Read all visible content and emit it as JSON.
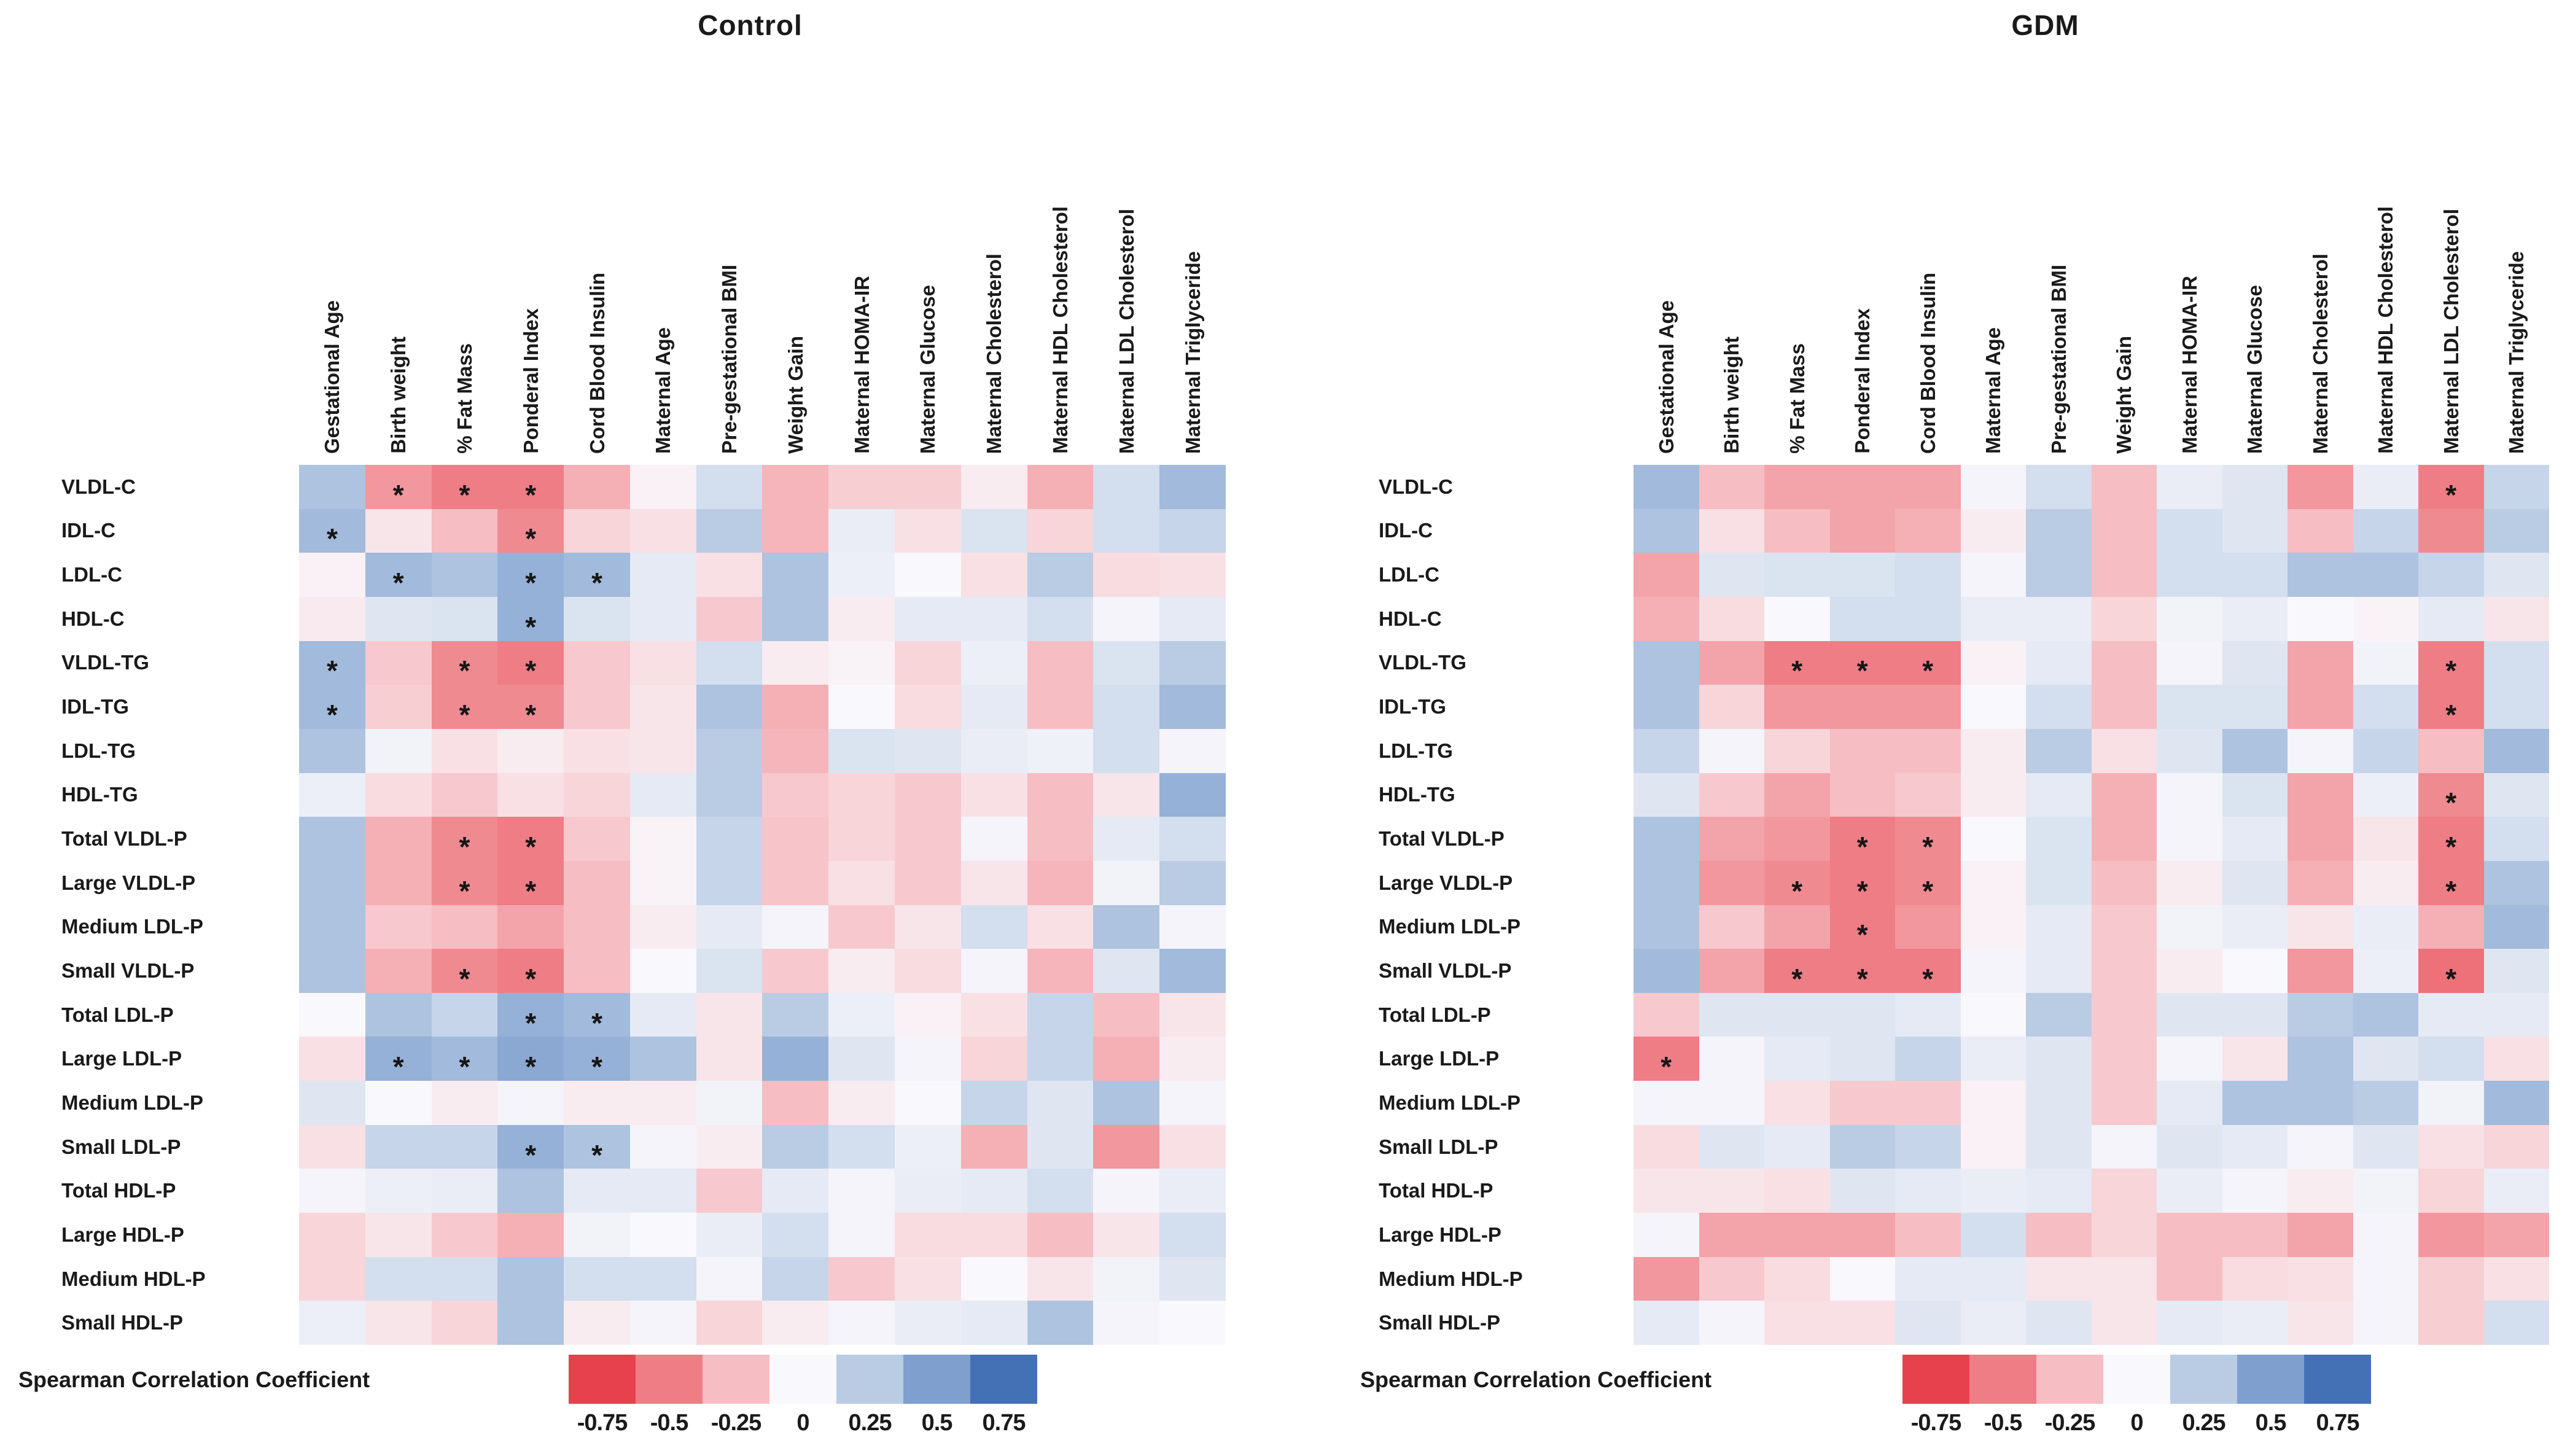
{
  "legend": {
    "caption": "Spearman Correlation Coefficient",
    "ticks": [
      "-0.75",
      "-0.5",
      "-0.25",
      "0",
      "0.25",
      "0.5",
      "0.75"
    ],
    "colors": [
      "#e8414e",
      "#ef7d85",
      "#f6bdc2",
      "#f9f8fc",
      "#b9cce4",
      "#7f9fce",
      "#4471b5"
    ],
    "anchor_values": [
      -0.75,
      -0.5,
      -0.25,
      0,
      0.25,
      0.5,
      0.75
    ]
  },
  "significance_marker": "*",
  "chart_data": [
    {
      "type": "heatmap",
      "title": "Control",
      "legend_position": "bottom",
      "value_range": [
        -1,
        1
      ],
      "columns": [
        "Gestational Age",
        "Birth weight",
        "% Fat Mass",
        "Ponderal Index",
        "Cord Blood Insulin",
        "Maternal Age",
        "Pre-gestational BMI",
        "Weight Gain",
        "Maternal HOMA-IR",
        "Maternal Glucose",
        "Maternal Cholesterol",
        "Maternal HDL Cholesterol",
        "Maternal LDL Cholesterol",
        "Maternal Triglyceride"
      ],
      "rows": [
        "VLDL-C",
        "IDL-C",
        "LDL-C",
        "HDL-C",
        "VLDL-TG",
        "IDL-TG",
        "LDL-TG",
        "HDL-TG",
        "Total VLDL-P",
        "Large VLDL-P",
        "Medium LDL-P",
        "Small VLDL-P",
        "Total LDL-P",
        "Large LDL-P",
        "Medium LDL-P",
        "Small LDL-P",
        "Total HDL-P",
        "Large HDL-P",
        "Medium HDL-P",
        "Small HDL-P"
      ],
      "values": [
        [
          0.3,
          -0.4,
          -0.5,
          -0.5,
          -0.3,
          -0.03,
          0.15,
          -0.28,
          -0.18,
          -0.18,
          -0.05,
          -0.3,
          0.15,
          0.35
        ],
        [
          0.35,
          -0.08,
          -0.25,
          -0.45,
          -0.15,
          -0.1,
          0.25,
          -0.28,
          0.06,
          -0.1,
          0.12,
          -0.15,
          0.15,
          0.2
        ],
        [
          -0.03,
          0.35,
          0.3,
          0.4,
          0.35,
          0.08,
          -0.1,
          0.3,
          0.05,
          0.0,
          -0.1,
          0.25,
          -0.12,
          -0.1
        ],
        [
          -0.06,
          0.1,
          0.12,
          0.4,
          0.12,
          0.08,
          -0.2,
          0.3,
          -0.05,
          0.08,
          0.08,
          0.15,
          0.02,
          0.08
        ],
        [
          0.35,
          -0.2,
          -0.45,
          -0.5,
          -0.2,
          -0.1,
          0.15,
          -0.05,
          -0.02,
          -0.15,
          0.05,
          -0.25,
          0.12,
          0.25
        ],
        [
          0.35,
          -0.18,
          -0.45,
          -0.45,
          -0.2,
          -0.08,
          0.3,
          -0.3,
          0.0,
          -0.12,
          0.08,
          -0.25,
          0.15,
          0.35
        ],
        [
          0.3,
          0.03,
          -0.1,
          -0.05,
          -0.1,
          -0.08,
          0.25,
          -0.28,
          0.12,
          0.1,
          0.06,
          0.04,
          0.15,
          0.02
        ],
        [
          0.05,
          -0.12,
          -0.2,
          -0.1,
          -0.15,
          0.08,
          0.25,
          -0.2,
          -0.15,
          -0.2,
          -0.1,
          -0.25,
          -0.08,
          0.4
        ],
        [
          0.3,
          -0.3,
          -0.45,
          -0.5,
          -0.2,
          -0.02,
          0.2,
          -0.22,
          -0.15,
          -0.2,
          0.02,
          -0.25,
          0.08,
          0.15
        ],
        [
          0.3,
          -0.3,
          -0.45,
          -0.5,
          -0.25,
          -0.02,
          0.2,
          -0.22,
          -0.1,
          -0.2,
          -0.08,
          -0.28,
          0.03,
          0.25
        ],
        [
          0.3,
          -0.2,
          -0.25,
          -0.35,
          -0.25,
          -0.05,
          0.08,
          0.02,
          -0.2,
          -0.08,
          0.15,
          -0.1,
          0.3,
          0.02
        ],
        [
          0.3,
          -0.3,
          -0.45,
          -0.5,
          -0.25,
          0.0,
          0.12,
          -0.2,
          -0.05,
          -0.12,
          0.02,
          -0.28,
          0.1,
          0.35
        ],
        [
          0.0,
          0.3,
          0.2,
          0.4,
          0.35,
          0.08,
          -0.08,
          0.25,
          0.05,
          -0.03,
          -0.1,
          0.2,
          -0.25,
          -0.08
        ],
        [
          -0.1,
          0.4,
          0.35,
          0.45,
          0.4,
          0.3,
          -0.08,
          0.4,
          0.1,
          0.02,
          -0.15,
          0.2,
          -0.3,
          -0.05
        ],
        [
          0.1,
          0.0,
          -0.05,
          0.02,
          -0.05,
          -0.05,
          0.03,
          -0.25,
          -0.05,
          0.0,
          0.2,
          0.1,
          0.3,
          0.02
        ],
        [
          -0.1,
          0.2,
          0.2,
          0.4,
          0.3,
          0.02,
          -0.05,
          0.25,
          0.15,
          0.05,
          -0.3,
          0.1,
          -0.4,
          -0.1
        ],
        [
          0.02,
          0.05,
          0.06,
          0.3,
          0.08,
          0.08,
          -0.2,
          0.08,
          0.02,
          0.06,
          0.08,
          0.15,
          0.02,
          0.06
        ],
        [
          -0.15,
          -0.08,
          -0.2,
          -0.3,
          0.03,
          0.0,
          0.06,
          0.15,
          0.02,
          -0.12,
          -0.12,
          -0.25,
          -0.08,
          0.15
        ],
        [
          -0.15,
          0.15,
          0.15,
          0.3,
          0.15,
          0.15,
          0.02,
          0.2,
          -0.2,
          -0.1,
          0.0,
          -0.08,
          0.03,
          0.1
        ],
        [
          0.05,
          -0.08,
          -0.15,
          0.3,
          -0.05,
          0.02,
          -0.15,
          -0.05,
          0.02,
          0.06,
          0.08,
          0.3,
          0.02,
          0.0
        ]
      ],
      "significant": [
        [
          0,
          1
        ],
        [
          0,
          2
        ],
        [
          0,
          3
        ],
        [
          1,
          0
        ],
        [
          1,
          3
        ],
        [
          2,
          1
        ],
        [
          2,
          3
        ],
        [
          2,
          4
        ],
        [
          3,
          3
        ],
        [
          4,
          0
        ],
        [
          4,
          2
        ],
        [
          4,
          3
        ],
        [
          5,
          0
        ],
        [
          5,
          2
        ],
        [
          5,
          3
        ],
        [
          8,
          2
        ],
        [
          8,
          3
        ],
        [
          9,
          2
        ],
        [
          9,
          3
        ],
        [
          11,
          2
        ],
        [
          11,
          3
        ],
        [
          12,
          3
        ],
        [
          12,
          4
        ],
        [
          13,
          1
        ],
        [
          13,
          2
        ],
        [
          13,
          3
        ],
        [
          13,
          4
        ],
        [
          15,
          3
        ],
        [
          15,
          4
        ]
      ]
    },
    {
      "type": "heatmap",
      "title": "GDM",
      "legend_position": "bottom",
      "value_range": [
        -1,
        1
      ],
      "columns": [
        "Gestational Age",
        "Birth weight",
        "% Fat Mass",
        "Ponderal Index",
        "Cord Blood Insulin",
        "Maternal Age",
        "Pre-gestational BMI",
        "Weight Gain",
        "Maternal HOMA-IR",
        "Maternal Glucose",
        "Maternal Cholesterol",
        "Maternal HDL Cholesterol",
        "Maternal LDL Cholesterol",
        "Maternal Triglyceride"
      ],
      "rows": [
        "VLDL-C",
        "IDL-C",
        "LDL-C",
        "HDL-C",
        "VLDL-TG",
        "IDL-TG",
        "LDL-TG",
        "HDL-TG",
        "Total VLDL-P",
        "Large VLDL-P",
        "Medium LDL-P",
        "Small VLDL-P",
        "Total LDL-P",
        "Large LDL-P",
        "Medium LDL-P",
        "Small LDL-P",
        "Total HDL-P",
        "Large HDL-P",
        "Medium HDL-P",
        "Small HDL-P"
      ],
      "values": [
        [
          0.35,
          -0.25,
          -0.35,
          -0.35,
          -0.35,
          0.02,
          0.15,
          -0.25,
          0.06,
          0.1,
          -0.4,
          0.06,
          -0.5,
          0.2
        ],
        [
          0.3,
          -0.1,
          -0.25,
          -0.35,
          -0.3,
          -0.05,
          0.25,
          -0.25,
          0.15,
          0.1,
          -0.25,
          0.2,
          -0.45,
          0.25
        ],
        [
          -0.35,
          0.1,
          0.12,
          0.12,
          0.15,
          0.02,
          0.25,
          -0.25,
          0.15,
          0.15,
          0.3,
          0.3,
          0.2,
          0.1
        ],
        [
          -0.3,
          -0.12,
          0.0,
          0.15,
          0.15,
          0.06,
          0.06,
          -0.15,
          0.03,
          0.06,
          0.0,
          -0.02,
          0.08,
          -0.08
        ],
        [
          0.3,
          -0.35,
          -0.5,
          -0.5,
          -0.5,
          -0.03,
          0.08,
          -0.25,
          0.02,
          0.1,
          -0.35,
          0.03,
          -0.5,
          0.15
        ],
        [
          0.3,
          -0.15,
          -0.4,
          -0.4,
          -0.4,
          0.0,
          0.15,
          -0.25,
          0.12,
          0.12,
          -0.35,
          0.15,
          -0.5,
          0.15
        ],
        [
          0.2,
          0.02,
          -0.15,
          -0.25,
          -0.25,
          -0.05,
          0.25,
          -0.1,
          0.1,
          0.3,
          0.02,
          0.2,
          -0.25,
          0.35
        ],
        [
          0.1,
          -0.2,
          -0.35,
          -0.25,
          -0.2,
          -0.05,
          0.08,
          -0.3,
          0.02,
          0.12,
          -0.35,
          0.05,
          -0.45,
          0.1
        ],
        [
          0.3,
          -0.35,
          -0.4,
          -0.5,
          -0.45,
          0.0,
          0.12,
          -0.3,
          0.02,
          0.08,
          -0.35,
          -0.08,
          -0.5,
          0.15
        ],
        [
          0.3,
          -0.4,
          -0.45,
          -0.5,
          -0.45,
          -0.03,
          0.12,
          -0.25,
          -0.05,
          0.1,
          -0.3,
          -0.05,
          -0.5,
          0.3
        ],
        [
          0.3,
          -0.2,
          -0.35,
          -0.5,
          -0.4,
          -0.03,
          0.08,
          -0.2,
          0.03,
          0.06,
          -0.08,
          0.06,
          -0.3,
          0.35
        ],
        [
          0.35,
          -0.35,
          -0.5,
          -0.5,
          -0.5,
          0.02,
          0.08,
          -0.2,
          -0.05,
          0.0,
          -0.4,
          0.05,
          -0.55,
          0.1
        ],
        [
          -0.2,
          0.1,
          0.1,
          0.1,
          0.08,
          0.0,
          0.25,
          -0.2,
          0.1,
          0.1,
          0.25,
          0.3,
          0.08,
          0.08
        ],
        [
          -0.5,
          0.02,
          0.08,
          0.1,
          0.2,
          0.06,
          0.1,
          -0.2,
          0.02,
          -0.08,
          0.3,
          0.1,
          0.15,
          -0.1
        ],
        [
          0.02,
          0.02,
          -0.1,
          -0.2,
          -0.2,
          -0.03,
          0.1,
          -0.2,
          0.08,
          0.3,
          0.3,
          0.25,
          0.03,
          0.35
        ],
        [
          -0.12,
          0.1,
          0.08,
          0.25,
          0.2,
          -0.03,
          0.1,
          0.02,
          0.1,
          0.08,
          0.02,
          0.1,
          -0.1,
          -0.15
        ],
        [
          -0.08,
          -0.08,
          -0.1,
          0.1,
          0.08,
          0.06,
          0.08,
          -0.15,
          0.06,
          0.02,
          -0.05,
          0.03,
          -0.15,
          0.06
        ],
        [
          0.02,
          -0.35,
          -0.35,
          -0.35,
          -0.25,
          0.15,
          -0.25,
          -0.15,
          -0.25,
          -0.25,
          -0.35,
          0.02,
          -0.4,
          -0.35
        ],
        [
          -0.4,
          -0.2,
          -0.12,
          0.0,
          0.08,
          0.08,
          -0.08,
          -0.08,
          -0.25,
          -0.12,
          -0.1,
          0.02,
          -0.18,
          -0.1
        ],
        [
          0.08,
          0.02,
          -0.1,
          -0.1,
          0.1,
          0.06,
          0.1,
          -0.08,
          0.08,
          0.06,
          -0.08,
          0.02,
          -0.18,
          0.15
        ]
      ],
      "significant": [
        [
          0,
          12
        ],
        [
          4,
          2
        ],
        [
          4,
          3
        ],
        [
          4,
          4
        ],
        [
          4,
          12
        ],
        [
          5,
          12
        ],
        [
          7,
          12
        ],
        [
          8,
          3
        ],
        [
          8,
          4
        ],
        [
          8,
          12
        ],
        [
          9,
          2
        ],
        [
          9,
          3
        ],
        [
          9,
          4
        ],
        [
          9,
          12
        ],
        [
          10,
          3
        ],
        [
          11,
          2
        ],
        [
          11,
          3
        ],
        [
          11,
          4
        ],
        [
          11,
          12
        ],
        [
          13,
          0
        ]
      ]
    }
  ]
}
